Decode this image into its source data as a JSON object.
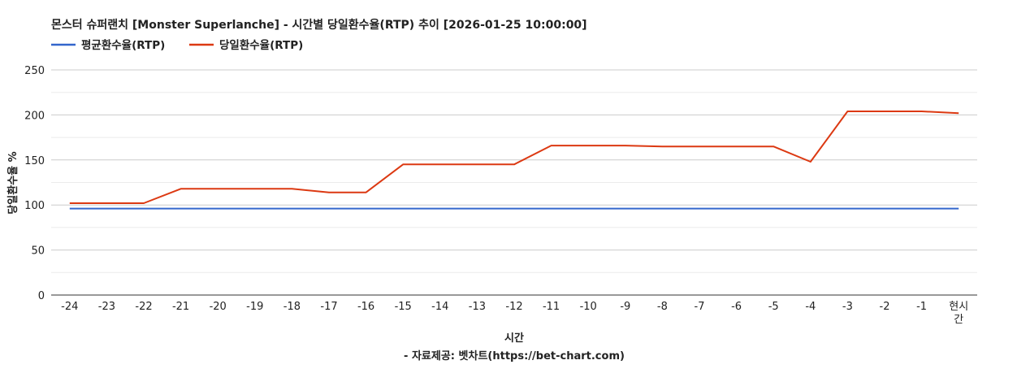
{
  "chart_data": {
    "type": "line",
    "title": "몬스터 슈퍼랜치 [Monster Superlanche] - 시간별 당일환수율(RTP) 추이 [2026-01-25 10:00:00]",
    "xlabel": "시간",
    "ylabel": "당일환수율 %",
    "credit": "- 자료제공: 벳차트(https://bet-chart.com)",
    "categories": [
      "-24",
      "-23",
      "-22",
      "-21",
      "-20",
      "-19",
      "-18",
      "-17",
      "-16",
      "-15",
      "-14",
      "-13",
      "-12",
      "-11",
      "-10",
      "-9",
      "-8",
      "-7",
      "-6",
      "-5",
      "-4",
      "-3",
      "-2",
      "-1",
      "현시간"
    ],
    "category_lines": {
      "24": [
        "현시",
        "간"
      ]
    },
    "ylim": [
      0,
      250
    ],
    "yticks": [
      0,
      50,
      100,
      150,
      200,
      250
    ],
    "grid": true,
    "legend_position": "top-left",
    "series": [
      {
        "name": "평균환수율(RTP)",
        "color": "#3366cc",
        "values": [
          96,
          96,
          96,
          96,
          96,
          96,
          96,
          96,
          96,
          96,
          96,
          96,
          96,
          96,
          96,
          96,
          96,
          96,
          96,
          96,
          96,
          96,
          96,
          96,
          96
        ]
      },
      {
        "name": "당일환수율(RTP)",
        "color": "#dc3912",
        "values": [
          102,
          102,
          102,
          118,
          118,
          118,
          118,
          114,
          114,
          145,
          145,
          145,
          145,
          166,
          166,
          166,
          165,
          165,
          165,
          165,
          148,
          204,
          204,
          204,
          202
        ]
      }
    ]
  }
}
